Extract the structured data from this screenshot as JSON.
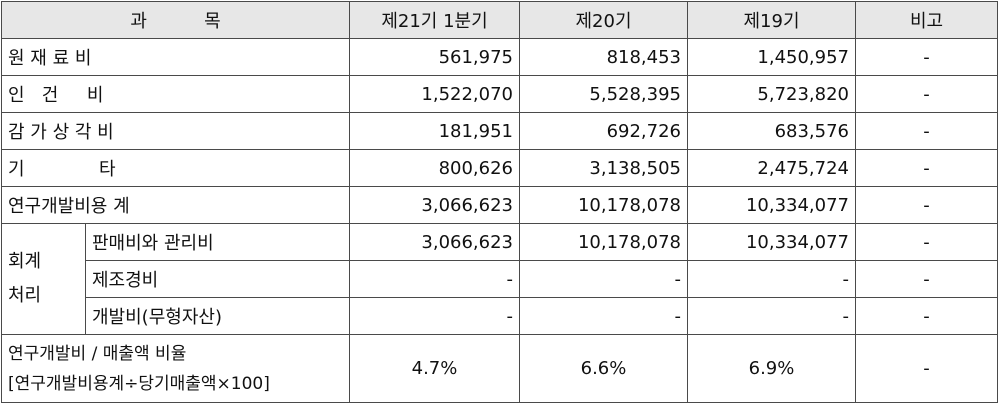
{
  "header": {
    "subject": "과          목",
    "period1": "제21기 1분기",
    "period2": "제20기",
    "period3": "제19기",
    "remarks": "비고"
  },
  "rows": [
    {
      "label": "원 재 료 비",
      "v1": "561,975",
      "v2": "818,453",
      "v3": "1,450,957",
      "note": "-"
    },
    {
      "label": "인   건     비",
      "v1": "1,522,070",
      "v2": "5,528,395",
      "v3": "5,723,820",
      "note": "-"
    },
    {
      "label": "감 가 상 각 비",
      "v1": "181,951",
      "v2": "692,726",
      "v3": "683,576",
      "note": "-"
    },
    {
      "label": "기             타",
      "v1": "800,626",
      "v2": "3,138,505",
      "v3": "2,475,724",
      "note": "-"
    },
    {
      "label": "연구개발비용 계",
      "v1": "3,066,623",
      "v2": "10,178,078",
      "v3": "10,334,077",
      "note": "-"
    }
  ],
  "accounting": {
    "group_label_line1": "회계",
    "group_label_line2": "처리",
    "rows": [
      {
        "label": "판매비와 관리비",
        "v1": "3,066,623",
        "v2": "10,178,078",
        "v3": "10,334,077",
        "note": "-"
      },
      {
        "label": "제조경비",
        "v1": "-",
        "v2": "-",
        "v3": "-",
        "note": "-"
      },
      {
        "label": "개발비(무형자산)",
        "v1": "-",
        "v2": "-",
        "v3": "-",
        "note": "-"
      }
    ]
  },
  "ratio": {
    "label_line1": "연구개발비 / 매출액 비율",
    "label_line2": "[연구개발비용계÷당기매출액×100]",
    "v1": "4.7%",
    "v2": "6.6%",
    "v3": "6.9%",
    "note": "-"
  }
}
